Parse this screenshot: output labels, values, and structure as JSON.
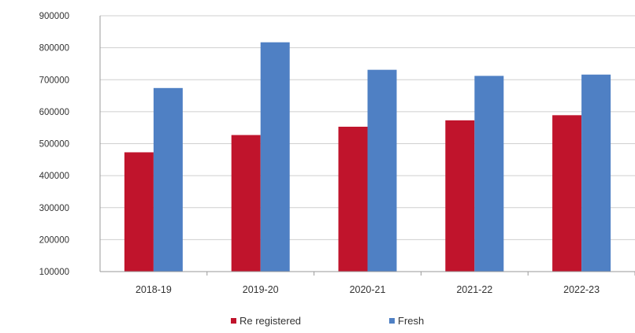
{
  "chart_data": {
    "type": "bar",
    "title": "",
    "xlabel": "",
    "ylabel": "",
    "categories": [
      "2018-19",
      "2019-20",
      "2020-21",
      "2021-22",
      "2022-23"
    ],
    "series": [
      {
        "name": "Re registered",
        "color": "#c0142c",
        "values": [
          473000,
          527000,
          553000,
          573000,
          589000
        ]
      },
      {
        "name": "Fresh",
        "color": "#4f80c4",
        "values": [
          674000,
          817000,
          731000,
          712000,
          716000
        ]
      }
    ],
    "ylim": [
      100000,
      900000
    ],
    "yticks": [
      "100000",
      "200000",
      "300000",
      "400000",
      "500000",
      "600000",
      "700000",
      "800000",
      "900000"
    ],
    "grid": true,
    "legend": "bottom"
  }
}
